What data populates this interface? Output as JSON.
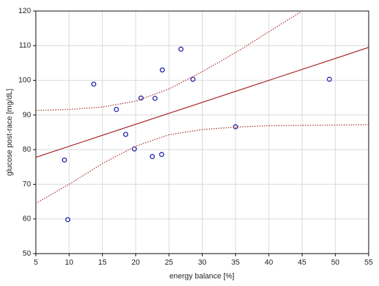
{
  "chart_data": {
    "type": "scatter",
    "xlabel": "energy balance [%]",
    "ylabel": "glucose post-race [mg/dL]",
    "xlim": [
      5,
      55
    ],
    "xticks": [
      5,
      10,
      15,
      20,
      25,
      30,
      35,
      40,
      45,
      50,
      55
    ],
    "ylim": [
      50,
      120
    ],
    "yticks": [
      50,
      60,
      70,
      80,
      90,
      100,
      110,
      120
    ],
    "grid": true,
    "series": [
      {
        "type": "scatter",
        "color": "#1c1ca8",
        "x": [
          9.3,
          9.8,
          13.7,
          17.1,
          18.5,
          19.8,
          20.8,
          22.5,
          22.9,
          23.9,
          24,
          26.8,
          28.6,
          35,
          49.1
        ],
        "values": [
          77,
          59.8,
          98.9,
          91.6,
          84.4,
          80.2,
          94.9,
          78,
          94.8,
          78.6,
          103,
          109,
          100.3,
          86.6,
          100.3
        ]
      },
      {
        "type": "line",
        "style": "solid",
        "color": "#a52a2a",
        "x": [
          5,
          55
        ],
        "values": [
          77.8,
          109.5
        ]
      },
      {
        "type": "line",
        "style": "dotted",
        "color": "#a52a2a",
        "x": [
          5,
          10,
          15,
          20,
          25,
          30,
          35,
          40,
          45
        ],
        "values": [
          91.3,
          91.6,
          92.3,
          94,
          97.5,
          102.5,
          108,
          114,
          120
        ]
      },
      {
        "type": "line",
        "style": "dotted",
        "color": "#a52a2a",
        "x": [
          5,
          10,
          15,
          20,
          25,
          30,
          35,
          40,
          45,
          50,
          55
        ],
        "values": [
          64.5,
          70,
          76,
          81,
          84.3,
          85.8,
          86.5,
          86.9,
          87,
          87.1,
          87.2
        ]
      }
    ]
  }
}
